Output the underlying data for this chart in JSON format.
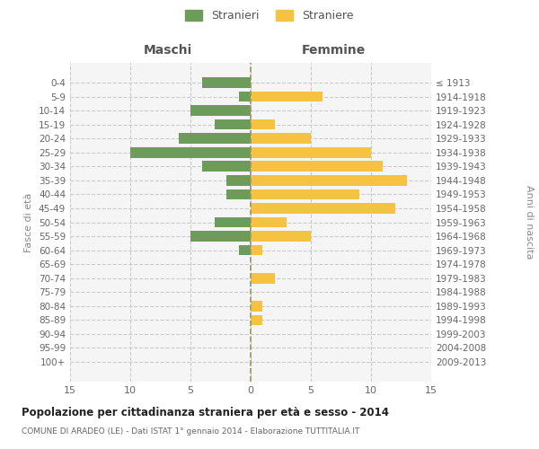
{
  "age_groups": [
    "0-4",
    "5-9",
    "10-14",
    "15-19",
    "20-24",
    "25-29",
    "30-34",
    "35-39",
    "40-44",
    "45-49",
    "50-54",
    "55-59",
    "60-64",
    "65-69",
    "70-74",
    "75-79",
    "80-84",
    "85-89",
    "90-94",
    "95-99",
    "100+"
  ],
  "birth_years": [
    "2009-2013",
    "2004-2008",
    "1999-2003",
    "1994-1998",
    "1989-1993",
    "1984-1988",
    "1979-1983",
    "1974-1978",
    "1969-1973",
    "1964-1968",
    "1959-1963",
    "1954-1958",
    "1949-1953",
    "1944-1948",
    "1939-1943",
    "1934-1938",
    "1929-1933",
    "1924-1928",
    "1919-1923",
    "1914-1918",
    "≤ 1913"
  ],
  "males": [
    4,
    1,
    5,
    3,
    6,
    10,
    4,
    2,
    2,
    0,
    3,
    5,
    1,
    0,
    0,
    0,
    0,
    0,
    0,
    0,
    0
  ],
  "females": [
    0,
    6,
    0,
    2,
    5,
    10,
    11,
    13,
    9,
    12,
    3,
    5,
    1,
    0,
    2,
    0,
    1,
    1,
    0,
    0,
    0
  ],
  "male_color": "#6d9b5a",
  "female_color": "#f5c242",
  "center_line_color": "#999966",
  "grid_color": "#cccccc",
  "title": "Popolazione per cittadinanza straniera per età e sesso - 2014",
  "subtitle": "COMUNE DI ARADEO (LE) - Dati ISTAT 1° gennaio 2014 - Elaborazione TUTTITALIA.IT",
  "ylabel_left": "Fasce di età",
  "ylabel_right": "Anni di nascita",
  "xlabel_left": "Maschi",
  "xlabel_right": "Femmine",
  "legend_males": "Stranieri",
  "legend_females": "Straniere",
  "xlim": 15,
  "bg_color": "#ffffff",
  "plot_bg_color": "#f5f5f5"
}
